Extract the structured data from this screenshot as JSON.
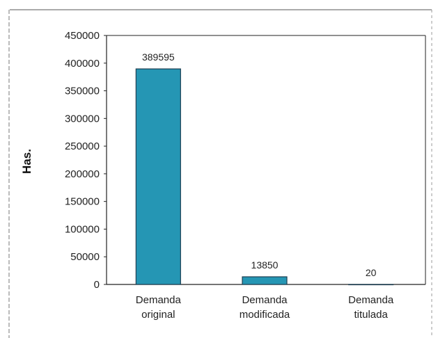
{
  "chart_data": {
    "type": "bar",
    "categories": [
      [
        "Demanda",
        "original"
      ],
      [
        "Demanda",
        "modificada"
      ],
      [
        "Demanda",
        "titulada"
      ]
    ],
    "values": [
      389595,
      13850,
      20
    ],
    "data_labels": [
      "389595",
      "13850",
      "20"
    ],
    "ylabel": "Has.",
    "ylim": [
      0,
      450000
    ],
    "yticks": [
      "450000",
      "400000",
      "350000",
      "300000",
      "250000",
      "200000",
      "150000",
      "100000",
      "50000",
      "0"
    ],
    "grid": false,
    "bar_color": "#2596b4",
    "bar_outline": "#1f3f52"
  }
}
